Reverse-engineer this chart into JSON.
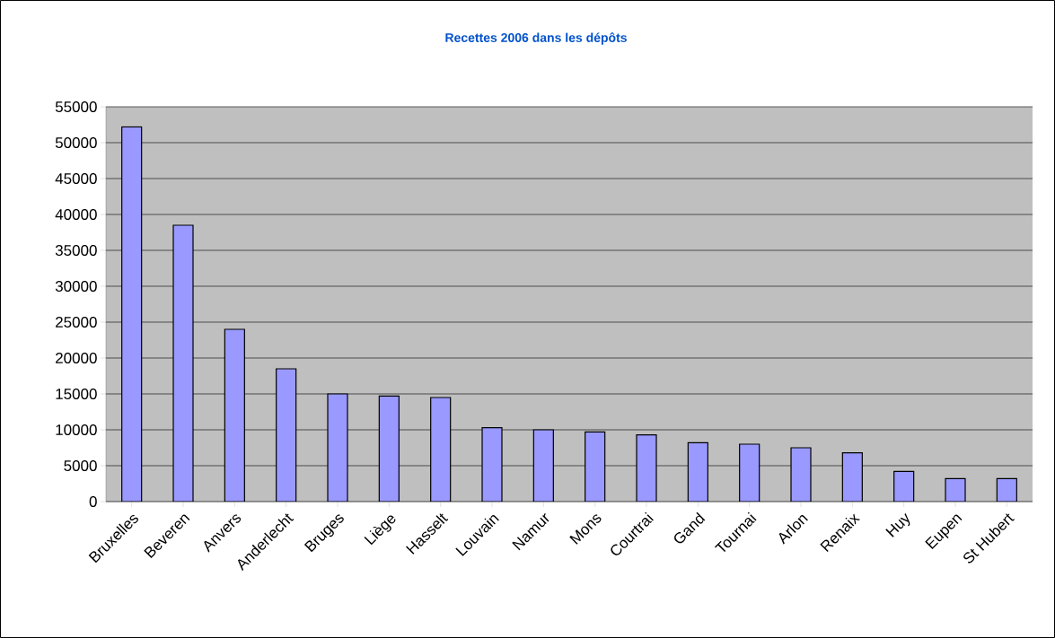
{
  "chart_data": {
    "type": "bar",
    "title": "Recettes 2006 dans les dépôts",
    "categories": [
      "Bruxelles",
      "Beveren",
      "Anvers",
      "Anderlecht",
      "Bruges",
      "Liège",
      "Hasselt",
      "Louvain",
      "Namur",
      "Mons",
      "Courtrai",
      "Gand",
      "Tournai",
      "Arlon",
      "Renaix",
      "Huy",
      "Eupen",
      "St Hubert"
    ],
    "values": [
      52200,
      38500,
      24000,
      18500,
      15000,
      14700,
      14500,
      10300,
      10000,
      9700,
      9300,
      8200,
      8000,
      7500,
      6800,
      4200,
      3200,
      3200
    ],
    "color": "#9999ff",
    "ylim": [
      0,
      55000
    ],
    "yticks": [
      0,
      5000,
      10000,
      15000,
      20000,
      25000,
      30000,
      35000,
      40000,
      45000,
      50000,
      55000
    ],
    "grid": "y"
  }
}
